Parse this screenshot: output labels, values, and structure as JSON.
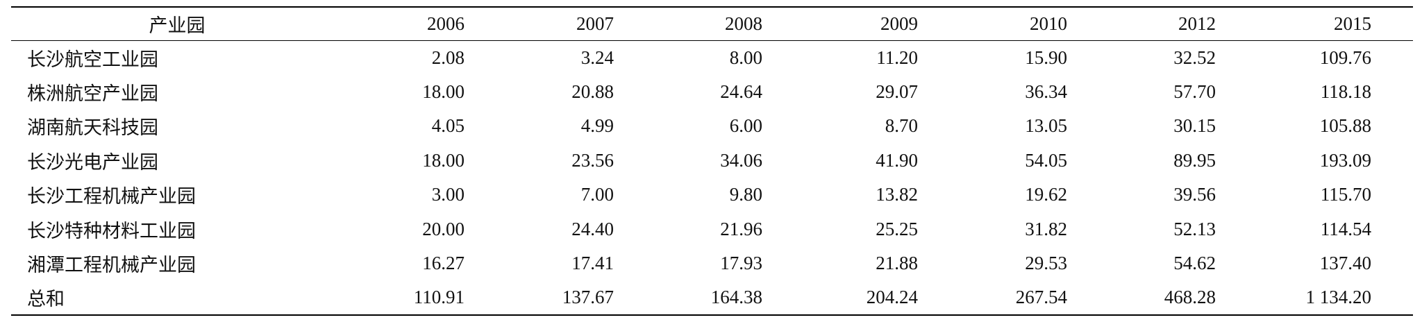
{
  "table": {
    "header": [
      "产业园",
      "2006",
      "2007",
      "2008",
      "2009",
      "2010",
      "2012",
      "2015"
    ],
    "rows": [
      [
        "长沙航空工业园",
        "2.08",
        "3.24",
        "8.00",
        "11.20",
        "15.90",
        "32.52",
        "109.76"
      ],
      [
        "株洲航空产业园",
        "18.00",
        "20.88",
        "24.64",
        "29.07",
        "36.34",
        "57.70",
        "118.18"
      ],
      [
        "湖南航天科技园",
        "4.05",
        "4.99",
        "6.00",
        "8.70",
        "13.05",
        "30.15",
        "105.88"
      ],
      [
        "长沙光电产业园",
        "18.00",
        "23.56",
        "34.06",
        "41.90",
        "54.05",
        "89.95",
        "193.09"
      ],
      [
        "长沙工程机械产业园",
        "3.00",
        "7.00",
        "9.80",
        "13.82",
        "19.62",
        "39.56",
        "115.70"
      ],
      [
        "长沙特种材料工业园",
        "20.00",
        "24.40",
        "21.96",
        "25.25",
        "31.82",
        "52.13",
        "114.54"
      ],
      [
        "湘潭工程机械产业园",
        "16.27",
        "17.41",
        "17.93",
        "21.88",
        "29.53",
        "54.62",
        "137.40"
      ],
      [
        "总和",
        "110.91",
        "137.67",
        "164.38",
        "204.24",
        "267.54",
        "468.28",
        "1 134.20"
      ]
    ]
  }
}
